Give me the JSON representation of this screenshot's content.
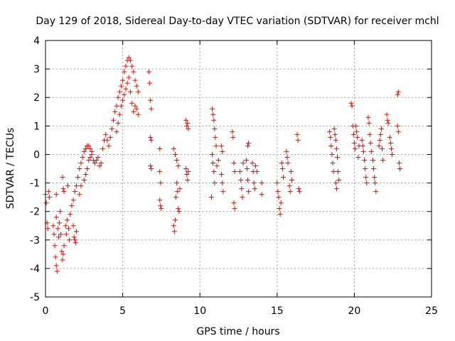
{
  "chart_data": {
    "type": "scatter",
    "title": "Day 129 of 2018, Sidereal Day-to-day VTEC variation (SDTVAR) for receiver mchl",
    "xlabel": "GPS time / hours",
    "ylabel": "SDTVAR / TECUs",
    "xlim": [
      0,
      25
    ],
    "ylim": [
      -5,
      4
    ],
    "xticks": [
      "0",
      "5",
      "10",
      "15",
      "20",
      "25"
    ],
    "yticks": [
      "4",
      "3",
      "2",
      "1",
      "0",
      "-1",
      "-2",
      "-3",
      "-4",
      "-5"
    ],
    "grid": true,
    "marker": "plus",
    "color": "#ff0000",
    "series": [
      {
        "name": "SDTVAR",
        "points": [
          [
            0.0,
            -1.4
          ],
          [
            0.05,
            -1.7
          ],
          [
            0.1,
            -2.4
          ],
          [
            0.15,
            -2.6
          ],
          [
            0.2,
            -1.3
          ],
          [
            0.25,
            -1.5
          ],
          [
            0.5,
            -2.5
          ],
          [
            0.55,
            -2.8
          ],
          [
            0.6,
            -3.2
          ],
          [
            0.65,
            -3.6
          ],
          [
            0.7,
            -3.9
          ],
          [
            0.75,
            -4.1
          ],
          [
            0.7,
            -1.4
          ],
          [
            0.7,
            -2.2
          ],
          [
            0.8,
            -2.6
          ],
          [
            0.85,
            -2.9
          ],
          [
            0.9,
            -2.4
          ],
          [
            0.95,
            -2.0
          ],
          [
            1.0,
            -2.8
          ],
          [
            1.05,
            -3.4
          ],
          [
            1.1,
            -3.7
          ],
          [
            1.15,
            -3.5
          ],
          [
            1.2,
            -3.2
          ],
          [
            1.1,
            -0.8
          ],
          [
            1.15,
            -1.2
          ],
          [
            1.2,
            -1.3
          ],
          [
            1.3,
            -2.5
          ],
          [
            1.35,
            -2.8
          ],
          [
            1.4,
            -2.3
          ],
          [
            1.45,
            -1.1
          ],
          [
            1.5,
            -2.6
          ],
          [
            1.55,
            -3.0
          ],
          [
            1.6,
            -2.1
          ],
          [
            1.7,
            -1.8
          ],
          [
            1.8,
            -2.5
          ],
          [
            1.85,
            -2.9
          ],
          [
            1.9,
            -3.0
          ],
          [
            1.95,
            -3.1
          ],
          [
            2.0,
            -2.7
          ],
          [
            1.8,
            -1.6
          ],
          [
            1.9,
            -1.3
          ],
          [
            2.0,
            -1.1
          ],
          [
            2.1,
            -0.8
          ],
          [
            2.2,
            -0.5
          ],
          [
            2.3,
            -0.3
          ],
          [
            2.2,
            -1.4
          ],
          [
            2.3,
            -1.1
          ],
          [
            2.4,
            -0.1
          ],
          [
            2.5,
            0.1
          ],
          [
            2.6,
            0.2
          ],
          [
            2.7,
            0.3
          ],
          [
            2.8,
            0.3
          ],
          [
            2.9,
            0.2
          ],
          [
            3.0,
            0.1
          ],
          [
            2.5,
            -0.9
          ],
          [
            2.6,
            -0.7
          ],
          [
            2.7,
            -0.5
          ],
          [
            2.8,
            -0.2
          ],
          [
            2.9,
            -0.1
          ],
          [
            3.0,
            0.0
          ],
          [
            3.1,
            -0.2
          ],
          [
            3.2,
            -0.3
          ],
          [
            3.3,
            -0.2
          ],
          [
            3.4,
            -0.1
          ],
          [
            3.5,
            -0.4
          ],
          [
            3.6,
            -0.3
          ],
          [
            3.7,
            0.2
          ],
          [
            3.8,
            0.5
          ],
          [
            3.9,
            0.7
          ],
          [
            4.0,
            0.5
          ],
          [
            4.1,
            0.3
          ],
          [
            4.2,
            0.6
          ],
          [
            4.3,
            0.9
          ],
          [
            4.4,
            1.2
          ],
          [
            4.5,
            1.5
          ],
          [
            4.6,
            1.7
          ],
          [
            4.7,
            2.0
          ],
          [
            4.8,
            2.2
          ],
          [
            4.9,
            2.4
          ],
          [
            5.0,
            2.6
          ],
          [
            5.1,
            2.9
          ],
          [
            5.2,
            3.1
          ],
          [
            5.3,
            3.3
          ],
          [
            5.4,
            3.4
          ],
          [
            5.5,
            3.3
          ],
          [
            5.6,
            3.1
          ],
          [
            5.7,
            2.9
          ],
          [
            5.8,
            2.6
          ],
          [
            5.9,
            2.4
          ],
          [
            6.0,
            2.2
          ],
          [
            4.6,
            0.8
          ],
          [
            4.7,
            1.1
          ],
          [
            4.8,
            1.4
          ],
          [
            4.9,
            1.7
          ],
          [
            5.0,
            1.9
          ],
          [
            5.1,
            2.1
          ],
          [
            5.2,
            2.3
          ],
          [
            5.3,
            2.5
          ],
          [
            5.4,
            2.7
          ],
          [
            5.5,
            2.2
          ],
          [
            5.6,
            1.8
          ],
          [
            5.7,
            1.5
          ],
          [
            5.8,
            1.7
          ],
          [
            5.9,
            1.6
          ],
          [
            6.0,
            1.4
          ],
          [
            6.7,
            2.9
          ],
          [
            6.75,
            2.5
          ],
          [
            6.8,
            1.9
          ],
          [
            6.85,
            1.6
          ],
          [
            6.8,
            0.6
          ],
          [
            6.85,
            0.5
          ],
          [
            6.8,
            -0.4
          ],
          [
            6.85,
            -0.5
          ],
          [
            7.4,
            -1.6
          ],
          [
            7.45,
            -1.8
          ],
          [
            7.5,
            -1.9
          ],
          [
            7.4,
            -0.6
          ],
          [
            7.45,
            -1.0
          ],
          [
            7.4,
            0.2
          ],
          [
            8.3,
            -2.5
          ],
          [
            8.35,
            -2.7
          ],
          [
            8.4,
            -2.3
          ],
          [
            8.45,
            -1.5
          ],
          [
            8.5,
            -1.0
          ],
          [
            8.55,
            -1.3
          ],
          [
            8.6,
            -1.9
          ],
          [
            8.65,
            -2.0
          ],
          [
            8.3,
            0.2
          ],
          [
            8.4,
            0.0
          ],
          [
            8.5,
            -0.2
          ],
          [
            8.6,
            -0.4
          ],
          [
            8.7,
            -1.2
          ],
          [
            9.1,
            1.2
          ],
          [
            9.15,
            1.0
          ],
          [
            9.2,
            1.1
          ],
          [
            9.25,
            0.9
          ],
          [
            9.1,
            -0.5
          ],
          [
            9.15,
            -0.7
          ],
          [
            9.2,
            -0.9
          ],
          [
            9.25,
            -0.6
          ],
          [
            10.8,
            1.6
          ],
          [
            10.85,
            1.4
          ],
          [
            10.9,
            1.2
          ],
          [
            10.95,
            0.9
          ],
          [
            11.0,
            0.6
          ],
          [
            11.05,
            0.3
          ],
          [
            10.8,
            0.0
          ],
          [
            10.85,
            -0.3
          ],
          [
            10.9,
            -0.6
          ],
          [
            10.95,
            -1.0
          ],
          [
            10.75,
            -1.5
          ],
          [
            11.1,
            -0.4
          ],
          [
            11.2,
            -0.2
          ],
          [
            11.4,
            -0.7
          ],
          [
            11.45,
            -1.0
          ],
          [
            11.5,
            -1.3
          ],
          [
            11.4,
            0.3
          ],
          [
            11.45,
            0.1
          ],
          [
            12.1,
            0.8
          ],
          [
            12.15,
            0.6
          ],
          [
            12.2,
            -0.3
          ],
          [
            12.25,
            -0.6
          ],
          [
            12.2,
            -1.7
          ],
          [
            12.25,
            -1.9
          ],
          [
            12.6,
            -0.6
          ],
          [
            12.65,
            -0.9
          ],
          [
            12.7,
            -1.2
          ],
          [
            12.75,
            -1.5
          ],
          [
            12.8,
            -0.3
          ],
          [
            13.0,
            -0.2
          ],
          [
            13.05,
            -0.5
          ],
          [
            13.1,
            -0.9
          ],
          [
            13.15,
            -1.3
          ],
          [
            13.1,
            0.3
          ],
          [
            13.15,
            0.4
          ],
          [
            13.4,
            -0.3
          ],
          [
            13.45,
            -0.6
          ],
          [
            13.5,
            -1.0
          ],
          [
            13.55,
            -1.2
          ],
          [
            13.6,
            -0.4
          ],
          [
            13.7,
            -0.6
          ],
          [
            14.0,
            -1.4
          ],
          [
            14.0,
            -1.0
          ],
          [
            15.0,
            -1.0
          ],
          [
            15.05,
            -1.3
          ],
          [
            15.1,
            -1.5
          ],
          [
            15.15,
            -1.9
          ],
          [
            15.2,
            -2.1
          ],
          [
            15.25,
            -1.7
          ],
          [
            15.3,
            -0.3
          ],
          [
            15.35,
            -0.5
          ],
          [
            15.4,
            -0.8
          ],
          [
            15.6,
            0.1
          ],
          [
            15.65,
            -0.1
          ],
          [
            15.7,
            -0.3
          ],
          [
            15.8,
            -1.1
          ],
          [
            15.85,
            -1.3
          ],
          [
            15.9,
            -0.6
          ],
          [
            15.95,
            -0.9
          ],
          [
            16.3,
            0.7
          ],
          [
            16.35,
            0.5
          ],
          [
            16.4,
            -1.2
          ],
          [
            16.45,
            -1.3
          ],
          [
            18.4,
            0.8
          ],
          [
            18.45,
            0.6
          ],
          [
            18.5,
            0.3
          ],
          [
            18.55,
            0.0
          ],
          [
            18.6,
            -0.3
          ],
          [
            18.65,
            -0.6
          ],
          [
            18.7,
            0.9
          ],
          [
            18.75,
            0.7
          ],
          [
            18.8,
            0.5
          ],
          [
            18.85,
            0.2
          ],
          [
            18.9,
            -0.1
          ],
          [
            18.95,
            -0.6
          ],
          [
            19.0,
            -0.9
          ],
          [
            18.8,
            -1.0
          ],
          [
            18.85,
            -1.2
          ],
          [
            19.8,
            1.8
          ],
          [
            19.85,
            1.7
          ],
          [
            19.9,
            1.0
          ],
          [
            19.95,
            0.7
          ],
          [
            20.0,
            0.4
          ],
          [
            20.05,
            0.2
          ],
          [
            20.1,
            1.0
          ],
          [
            20.15,
            0.8
          ],
          [
            20.2,
            0.6
          ],
          [
            20.25,
            -0.1
          ],
          [
            20.3,
            0.3
          ],
          [
            20.5,
            0.5
          ],
          [
            20.55,
            0.3
          ],
          [
            20.6,
            0.1
          ],
          [
            20.65,
            -0.2
          ],
          [
            20.7,
            -0.5
          ],
          [
            20.75,
            -0.8
          ],
          [
            20.8,
            -1.0
          ],
          [
            20.9,
            1.3
          ],
          [
            20.95,
            1.1
          ],
          [
            21.0,
            0.7
          ],
          [
            21.05,
            0.4
          ],
          [
            21.1,
            0.1
          ],
          [
            21.2,
            -0.2
          ],
          [
            21.25,
            -0.5
          ],
          [
            21.3,
            -0.8
          ],
          [
            21.35,
            -1.0
          ],
          [
            21.4,
            -1.3
          ],
          [
            21.6,
            0.3
          ],
          [
            21.65,
            0.5
          ],
          [
            21.7,
            0.7
          ],
          [
            21.75,
            0.9
          ],
          [
            21.8,
            0.2
          ],
          [
            21.85,
            -0.2
          ],
          [
            22.1,
            1.4
          ],
          [
            22.15,
            1.2
          ],
          [
            22.2,
            1.1
          ],
          [
            22.3,
            0.6
          ],
          [
            22.35,
            0.4
          ],
          [
            22.4,
            0.2
          ],
          [
            22.45,
            0.0
          ],
          [
            22.8,
            2.1
          ],
          [
            22.85,
            2.2
          ],
          [
            22.8,
            1.0
          ],
          [
            22.85,
            0.8
          ],
          [
            22.9,
            -0.3
          ],
          [
            22.95,
            -0.5
          ]
        ]
      }
    ]
  }
}
